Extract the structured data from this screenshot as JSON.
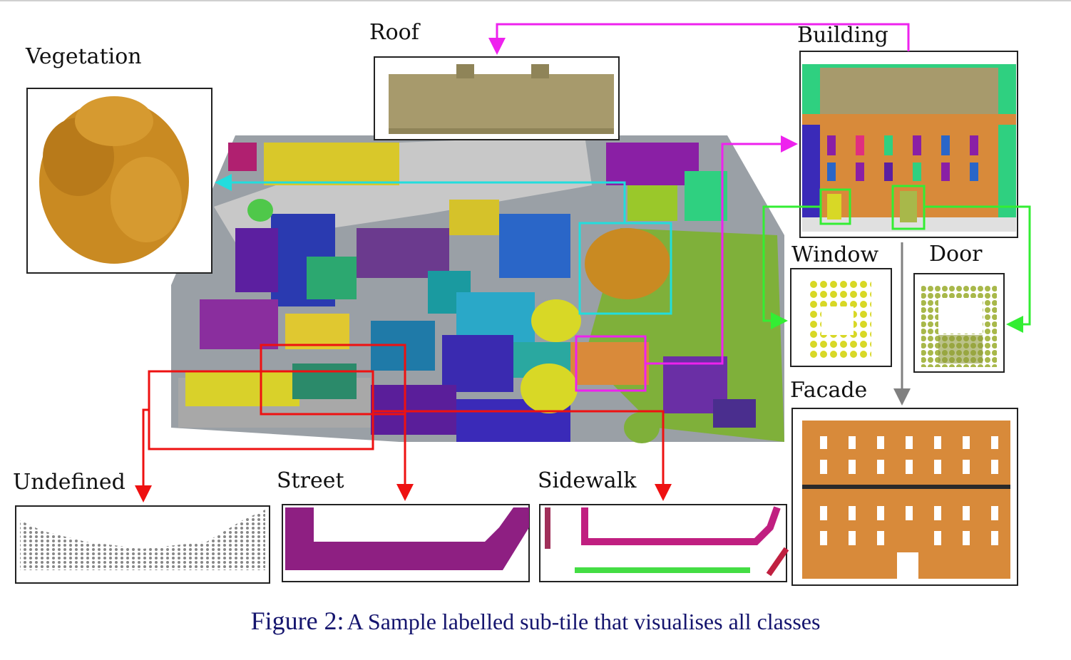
{
  "labels": {
    "roof": "Roof",
    "building": "Building",
    "vegetation": "Vegetation",
    "window": "Window",
    "door": "Door",
    "facade": "Facade",
    "undefined": "Undefined",
    "street": "Street",
    "sidewalk": "Sidewalk"
  },
  "caption": {
    "figure_number": "Figure 2:",
    "text": "A Sample labelled sub-tile that visualises all classes"
  },
  "colors": {
    "magenta": "#ee22ee",
    "cyan": "#22dddd",
    "green": "#33ee33",
    "red": "#ee1111",
    "gray": "#808080",
    "vegetation": "#c98a22",
    "roof": "#a79a6c",
    "facade": "#d88a3a",
    "street": "#8e1f82",
    "window": "#d8d826",
    "door": "#a8b84a",
    "caption": "#15156e"
  }
}
